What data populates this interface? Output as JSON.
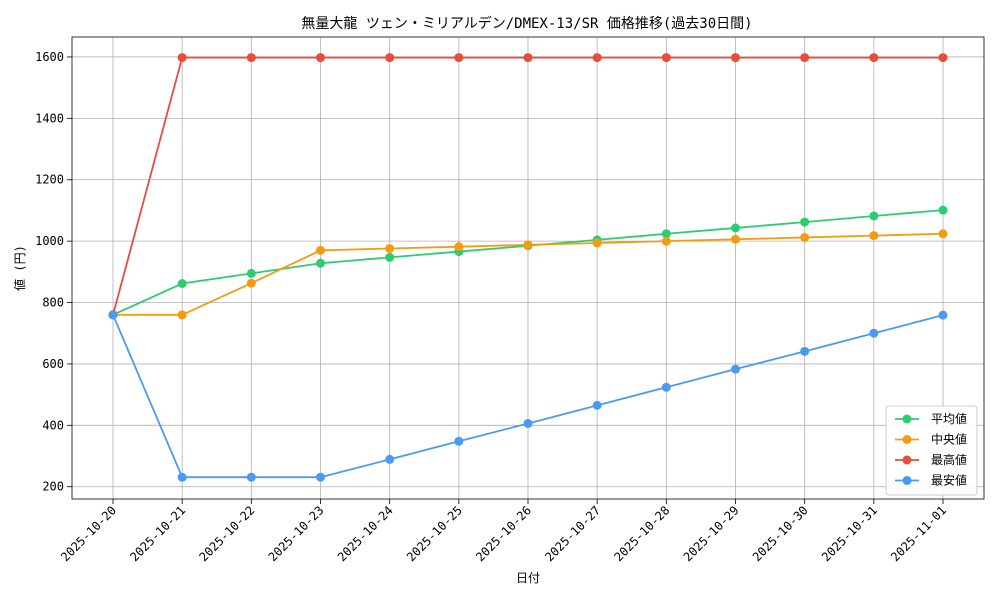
{
  "chart_data": {
    "type": "line",
    "title": "無量大龍 ツェン・ミリアルデン/DMEX-13/SR 価格推移(過去30日間)",
    "xlabel": "日付",
    "ylabel": "値 (円)",
    "categories": [
      "2025-10-20",
      "2025-10-21",
      "2025-10-22",
      "2025-10-23",
      "2025-10-24",
      "2025-10-25",
      "2025-10-26",
      "2025-10-27",
      "2025-10-28",
      "2025-10-29",
      "2025-10-30",
      "2025-10-31",
      "2025-11-01"
    ],
    "ylim": [
      160,
      1665
    ],
    "yticks": [
      200,
      400,
      600,
      800,
      1000,
      1200,
      1400,
      1600
    ],
    "grid": true,
    "legend_position": "lower-right",
    "series": [
      {
        "name": "平均値",
        "color": "#2ecc71",
        "values": [
          760,
          862,
          895,
          928,
          947,
          966,
          985,
          1004,
          1024,
          1043,
          1062,
          1082,
          1101
        ]
      },
      {
        "name": "中央値",
        "color": "#f39c12",
        "values": [
          760,
          760,
          863,
          970,
          976,
          982,
          988,
          994,
          1000,
          1006,
          1012,
          1018,
          1024
        ]
      },
      {
        "name": "最高値",
        "color": "#e74c3c",
        "values": [
          760,
          1598,
          1598,
          1598,
          1598,
          1598,
          1598,
          1598,
          1598,
          1598,
          1598,
          1598,
          1598
        ]
      },
      {
        "name": "最安値",
        "color": "#4a9af5",
        "values": [
          760,
          231,
          231,
          231,
          289,
          348,
          406,
          465,
          524,
          583,
          641,
          700,
          759
        ]
      }
    ]
  }
}
